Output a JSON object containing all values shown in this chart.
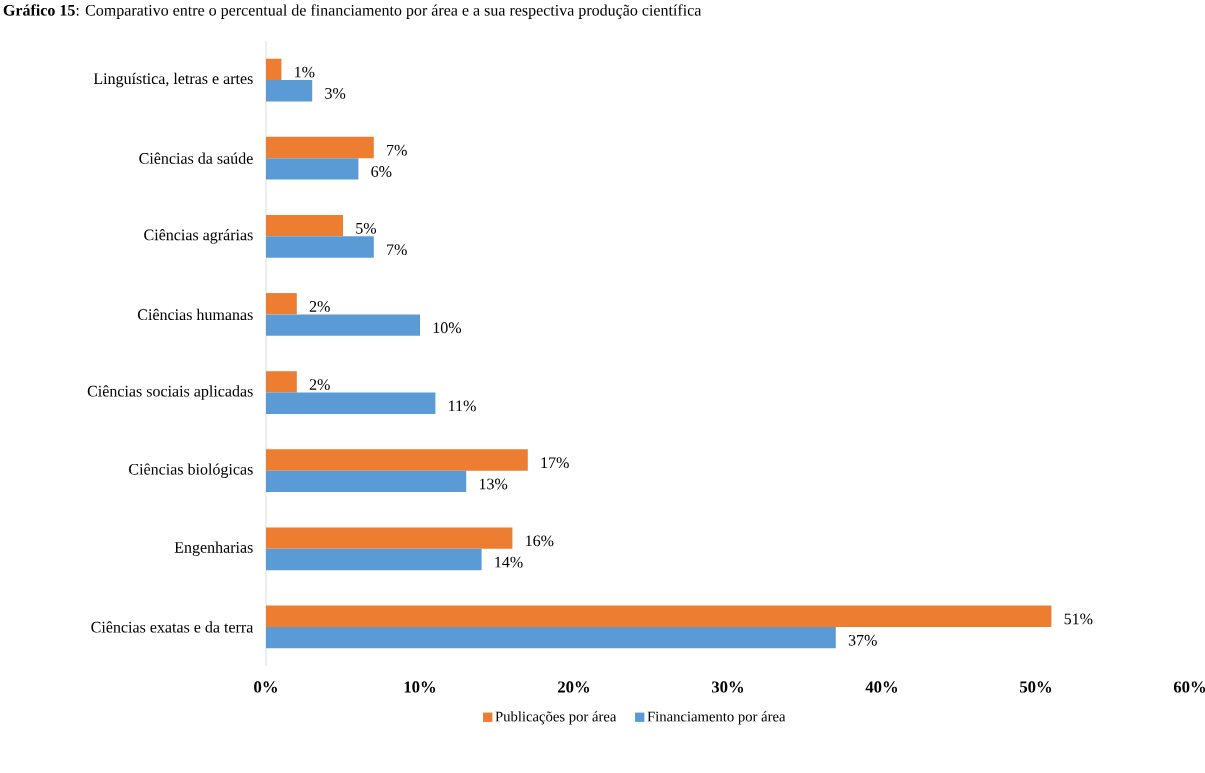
{
  "chart_data": {
    "type": "bar",
    "orientation": "horizontal",
    "title": "**Gráfico 15**: Comparativo entre o percentual de financiamento por área e a sua respectiva produção científica",
    "categories": [
      "Linguística, letras e artes",
      "Ciências da saúde",
      "Ciências agrárias",
      "Ciências humanas",
      "Ciências sociais aplicadas",
      "Ciências biológicas",
      "Engenharias",
      "Ciências exatas e da terra"
    ],
    "series": [
      {
        "name": "Publicações por área",
        "color": "#ed7d31",
        "values": [
          1,
          7,
          5,
          2,
          2,
          17,
          16,
          51
        ],
        "value_labels": [
          "1%",
          "7%",
          "5%",
          "2%",
          "2%",
          "17%",
          "16%",
          "51%"
        ]
      },
      {
        "name": "Financiamento por área",
        "color": "#5b9bd5",
        "values": [
          3,
          6,
          7,
          10,
          11,
          13,
          14,
          37
        ],
        "value_labels": [
          "3%",
          "6%",
          "7%",
          "10%",
          "11%",
          "13%",
          "14%",
          "37%"
        ]
      }
    ],
    "xlim": [
      0,
      60
    ],
    "xticks": [
      {
        "value": 0,
        "label": "0%"
      },
      {
        "value": 10,
        "label": "10%"
      },
      {
        "value": 20,
        "label": "20%"
      },
      {
        "value": 30,
        "label": "30%"
      },
      {
        "value": 40,
        "label": "40%"
      },
      {
        "value": 50,
        "label": "50%"
      },
      {
        "value": 60,
        "label": "60%"
      }
    ],
    "legend": "bottom"
  }
}
